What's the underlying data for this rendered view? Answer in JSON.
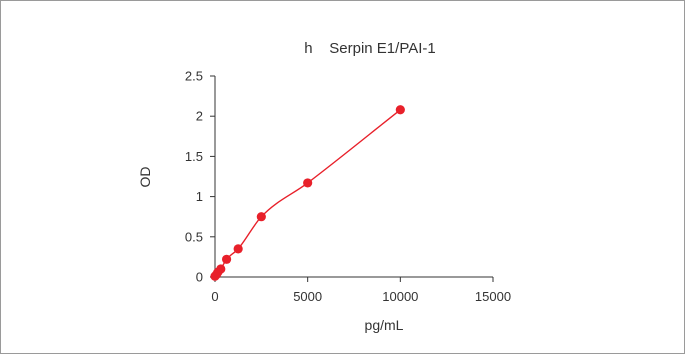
{
  "chart_data": {
    "type": "scatter",
    "title": "h    Serpin E1/PAI-1",
    "xlabel": "pg/mL",
    "ylabel": "OD",
    "xlim": [
      0,
      15000
    ],
    "ylim": [
      0,
      2.5
    ],
    "xticks": [
      "0",
      "5000",
      "10000",
      "15000"
    ],
    "yticks": [
      "0",
      "0.5",
      "1",
      "1.5",
      "2",
      "2.5"
    ],
    "grid": false,
    "legend": "none",
    "marker_color": "#e8202a",
    "line_color": "#e8202a",
    "x": [
      0,
      78,
      156,
      312,
      625,
      1250,
      2500,
      5000,
      10000
    ],
    "y": [
      0.01,
      0.03,
      0.06,
      0.1,
      0.22,
      0.35,
      0.75,
      1.17,
      2.08
    ],
    "fit_line": true
  }
}
